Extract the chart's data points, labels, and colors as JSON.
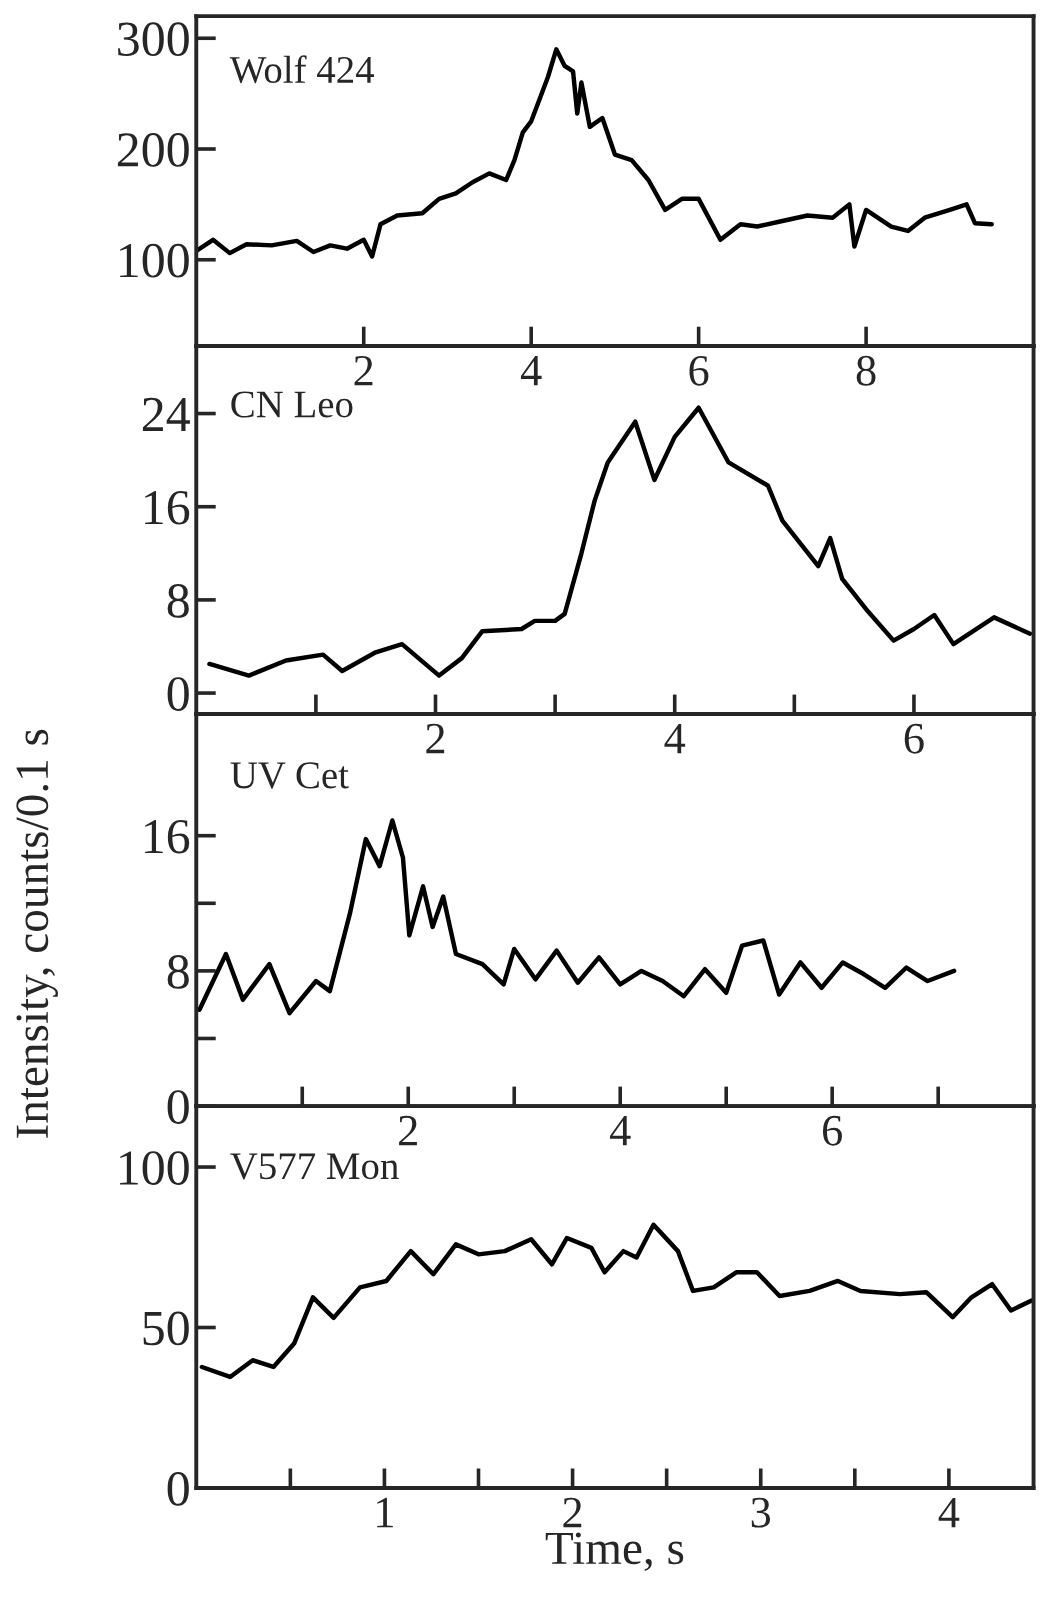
{
  "chart_data": [
    {
      "type": "line",
      "annotations": [
        "Wolf 424"
      ],
      "xlim": [
        0,
        10
      ],
      "ylim": [
        22,
        320
      ],
      "xticks": [
        2,
        4,
        6,
        8
      ],
      "yticks": [
        100,
        200,
        300
      ],
      "x": [
        0,
        0.2,
        0.4,
        0.6,
        0.9,
        1.2,
        1.4,
        1.6,
        1.8,
        2.0,
        2.1,
        2.2,
        2.4,
        2.7,
        2.9,
        3.1,
        3.3,
        3.5,
        3.7,
        3.8,
        3.9,
        4.0,
        4.1,
        4.2,
        4.3,
        4.4,
        4.5,
        4.55,
        4.6,
        4.7,
        4.85,
        5.0,
        5.2,
        5.4,
        5.6,
        5.8,
        6.0,
        6.26,
        6.5,
        6.7,
        7.0,
        7.3,
        7.6,
        7.8,
        7.86,
        8.0,
        8.3,
        8.5,
        8.7,
        9.0,
        9.2,
        9.3,
        9.5
      ],
      "series": [
        {
          "color": "#000000",
          "values": [
            108,
            118,
            106,
            114,
            113,
            117,
            107,
            113,
            110,
            118,
            103,
            132,
            140,
            142,
            155,
            160,
            170,
            178,
            172,
            190,
            215,
            225,
            245,
            265,
            290,
            275,
            270,
            232,
            260,
            220,
            228,
            195,
            190,
            172,
            145,
            155,
            155,
            118,
            132,
            130,
            135,
            140,
            138,
            150,
            112,
            145,
            130,
            126,
            138,
            145,
            150,
            133,
            132
          ]
        }
      ]
    },
    {
      "type": "line",
      "annotations": [
        "CN Leo"
      ],
      "xlim": [
        0,
        7
      ],
      "ylim": [
        -1.8,
        29.8
      ],
      "xticks": [
        {
          "value": 1,
          "label": null
        },
        2,
        {
          "value": 3,
          "label": null
        },
        4,
        {
          "value": 5,
          "label": null
        },
        6
      ],
      "yticks": [
        0,
        8,
        16,
        24
      ],
      "x": [
        0.11,
        0.44,
        0.75,
        1.06,
        1.22,
        1.5,
        1.72,
        2.03,
        2.22,
        2.39,
        2.72,
        2.83,
        3.0,
        3.08,
        3.22,
        3.33,
        3.44,
        3.67,
        3.83,
        4.0,
        4.2,
        4.45,
        4.78,
        4.9,
        5.2,
        5.3,
        5.4,
        5.6,
        5.83,
        6.0,
        6.17,
        6.33,
        6.67,
        6.97
      ],
      "series": [
        {
          "color": "#000000",
          "values": [
            2.5,
            1.5,
            2.8,
            3.3,
            1.9,
            3.5,
            4.2,
            1.5,
            3,
            5.3,
            5.5,
            6.2,
            6.2,
            6.8,
            12,
            16.5,
            19.8,
            23.3,
            18.3,
            22,
            24.5,
            19.8,
            17.8,
            14.8,
            10.9,
            13.3,
            9.8,
            7.2,
            4.5,
            5.5,
            6.7,
            4.2,
            6.5,
            5.1
          ]
        }
      ]
    },
    {
      "type": "line",
      "annotations": [
        "UV Cet"
      ],
      "ylabel": "Intensity, counts/0.1 s",
      "xlim": [
        0,
        7.9
      ],
      "ylim": [
        0,
        23.2
      ],
      "xticks": [
        {
          "value": 1,
          "label": null
        },
        2,
        {
          "value": 3,
          "label": null
        },
        4,
        {
          "value": 5,
          "label": null
        },
        6,
        {
          "value": 7,
          "label": null
        }
      ],
      "yticks": [
        0,
        {
          "value": 4,
          "label": null
        },
        8,
        {
          "value": 12,
          "label": null
        },
        16
      ],
      "x": [
        0.03,
        0.28,
        0.44,
        0.69,
        0.88,
        1.13,
        1.26,
        1.45,
        1.6,
        1.73,
        1.85,
        1.95,
        2.01,
        2.14,
        2.23,
        2.33,
        2.45,
        2.7,
        2.9,
        3.0,
        3.2,
        3.4,
        3.6,
        3.8,
        4.0,
        4.2,
        4.4,
        4.6,
        4.8,
        5.0,
        5.15,
        5.35,
        5.5,
        5.7,
        5.9,
        6.1,
        6.3,
        6.5,
        6.7,
        6.9,
        7.15
      ],
      "series": [
        {
          "color": "#000000",
          "values": [
            5.7,
            9.0,
            6.3,
            8.4,
            5.5,
            7.4,
            6.8,
            11.4,
            15.8,
            14.2,
            16.9,
            14.7,
            10.1,
            13,
            10.6,
            12.4,
            9.0,
            8.4,
            7.2,
            9.3,
            7.5,
            9.2,
            7.3,
            8.8,
            7.2,
            8.0,
            7.4,
            6.5,
            8.1,
            6.7,
            9.5,
            9.8,
            6.6,
            8.5,
            7.0,
            8.5,
            7.8,
            7.0,
            8.2,
            7.4,
            8.0
          ]
        }
      ]
    },
    {
      "type": "line",
      "annotations": [
        "V577 Mon"
      ],
      "xlabel": "Time, s",
      "xlim": [
        0,
        4.45
      ],
      "ylim": [
        0,
        119
      ],
      "xticks": [
        {
          "value": 0.5,
          "label": null
        },
        1,
        {
          "value": 1.5,
          "label": null
        },
        2,
        {
          "value": 2.5,
          "label": null
        },
        3,
        {
          "value": 3.5,
          "label": null
        },
        4
      ],
      "yticks": [
        0,
        50,
        100
      ],
      "x": [
        0.03,
        0.18,
        0.3,
        0.41,
        0.52,
        0.62,
        0.73,
        0.87,
        1.01,
        1.14,
        1.26,
        1.38,
        1.5,
        1.64,
        1.78,
        1.89,
        1.97,
        2.1,
        2.17,
        2.27,
        2.34,
        2.43,
        2.56,
        2.64,
        2.75,
        2.87,
        2.98,
        3.1,
        3.26,
        3.41,
        3.53,
        3.74,
        3.88,
        4.02,
        4.12,
        4.23,
        4.33,
        4.44
      ],
      "series": [
        {
          "color": "#000000",
          "values": [
            37.7,
            34.6,
            39.8,
            37.7,
            45,
            59.4,
            53,
            62.5,
            64.5,
            73.8,
            66.6,
            75.9,
            72.8,
            73.8,
            77.5,
            69.7,
            77.9,
            74.8,
            67.2,
            73.8,
            71.8,
            82,
            73.8,
            61.4,
            62.5,
            67.2,
            67.2,
            59.8,
            61.4,
            64.5,
            61.4,
            60.4,
            61,
            53.2,
            59.4,
            63.5,
            55.3,
            58.4
          ]
        }
      ]
    }
  ]
}
